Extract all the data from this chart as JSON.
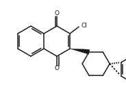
{
  "bg_color": "#ffffff",
  "line_color": "#1a1a1a",
  "line_width": 1.1,
  "font_size": 6.5,
  "figsize": [
    1.84,
    1.24
  ],
  "dpi": 100,
  "xlim": [
    0,
    184
  ],
  "ylim": [
    0,
    124
  ]
}
